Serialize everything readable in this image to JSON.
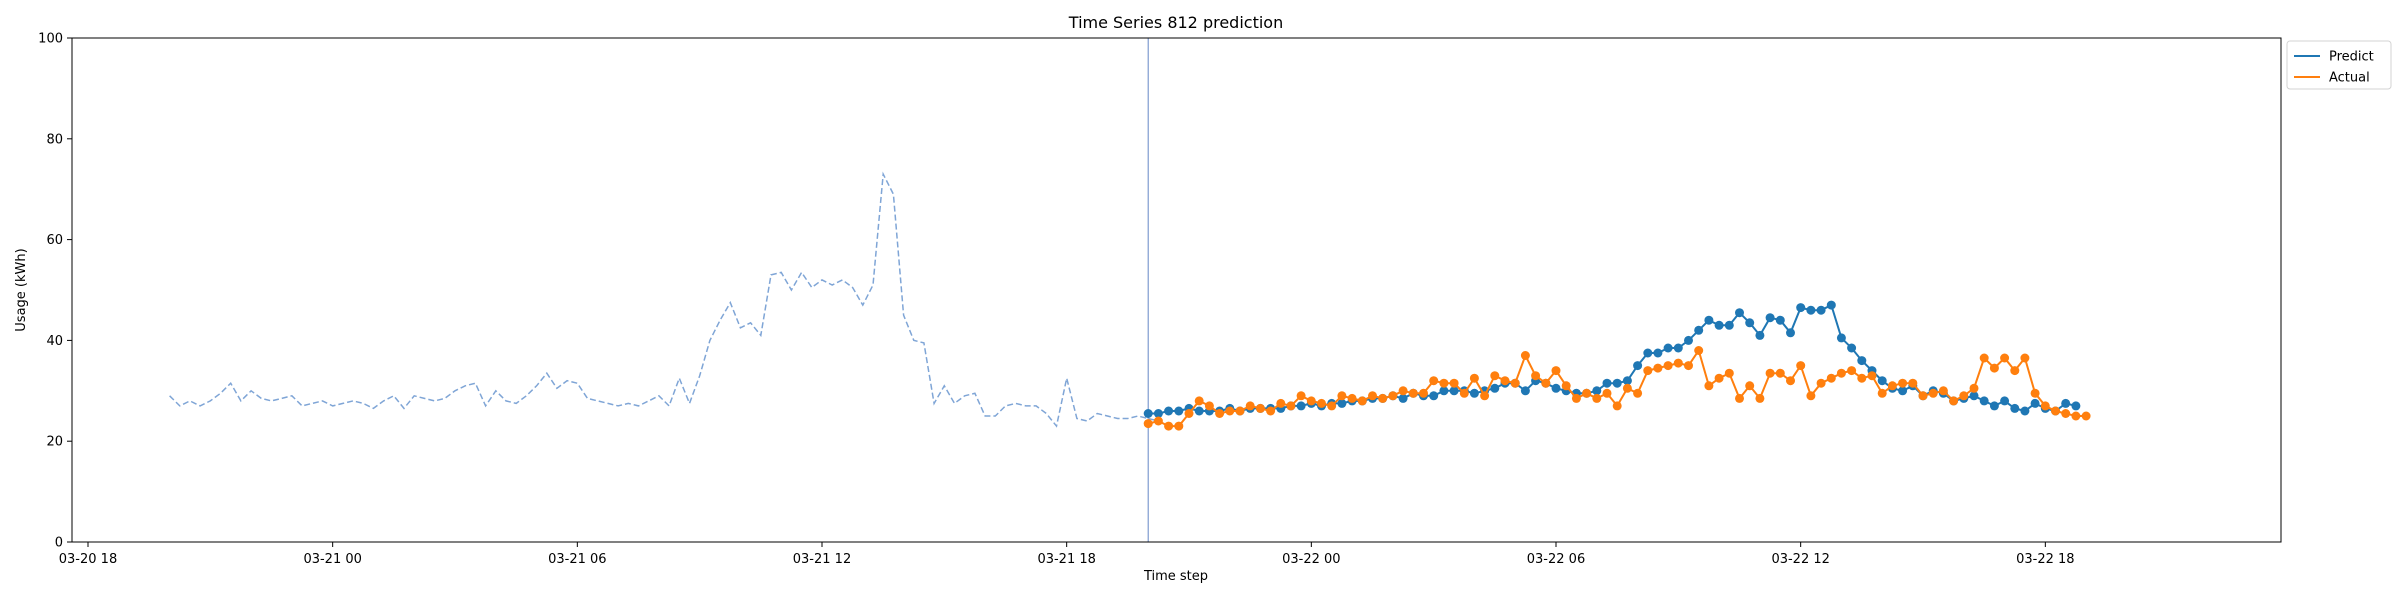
{
  "chart_data": {
    "type": "line",
    "title": "Time Series 812 prediction",
    "xlabel": "Time step",
    "ylabel": "Usage (kWh)",
    "xlim": [
      "2024-03-20 18:00",
      "2024-03-23 00:00"
    ],
    "ylim": [
      0,
      100
    ],
    "yticks": [
      0,
      20,
      40,
      60,
      80,
      100
    ],
    "xticks": [
      {
        "label": "03-20 18",
        "hours": 0
      },
      {
        "label": "03-21 00",
        "hours": 6
      },
      {
        "label": "03-21 06",
        "hours": 12
      },
      {
        "label": "03-21 12",
        "hours": 18
      },
      {
        "label": "03-21 18",
        "hours": 24
      },
      {
        "label": "03-22 00",
        "hours": 30
      },
      {
        "label": "03-22 06",
        "hours": 36
      },
      {
        "label": "03-22 12",
        "hours": 42
      },
      {
        "label": "03-22 18",
        "hours": 48
      }
    ],
    "forecast_start": "2024-03-21 20:00",
    "grid": false,
    "legend_position": "top-right (outside)",
    "history": {
      "start": "2024-03-20 20:00",
      "step_minutes": 15,
      "color": "#7fa5d6",
      "values": [
        29,
        27,
        28,
        27,
        28,
        29.5,
        31.5,
        28,
        30,
        28.5,
        28,
        28.5,
        29,
        27,
        27.5,
        28,
        27,
        27.5,
        28,
        27.5,
        26.5,
        28,
        29,
        26.5,
        29,
        28.5,
        28,
        28.5,
        30,
        31,
        31.5,
        27,
        30,
        28,
        27.5,
        29,
        31,
        33.5,
        30.5,
        32,
        31.5,
        28.5,
        28,
        27.5,
        27,
        27.5,
        27,
        28,
        29,
        27,
        32.5,
        27.5,
        33,
        40,
        44,
        47.5,
        42.5,
        43.5,
        41,
        53,
        53.5,
        50,
        53.5,
        50.5,
        52,
        51,
        52,
        50.5,
        47,
        51,
        73,
        69,
        45,
        40,
        39.5,
        27.5,
        31,
        27.5,
        29,
        29.5,
        25,
        25,
        27,
        27.5,
        27,
        27,
        25.5,
        23,
        32.5,
        24.5,
        24,
        25.5,
        25,
        24.5,
        24.5,
        25,
        24.5,
        24
      ]
    },
    "series": [
      {
        "name": "Predict",
        "color": "#1f77b4",
        "start": "2024-03-21 20:00",
        "step_minutes": 15,
        "values": [
          25.5,
          25.5,
          26,
          26,
          26.5,
          26,
          26,
          26,
          26.5,
          26,
          26.5,
          26.5,
          26.5,
          26.5,
          27,
          27,
          27.5,
          27,
          27.5,
          27.5,
          28,
          28,
          28.5,
          28.5,
          29,
          28.5,
          29.5,
          29,
          29,
          30,
          30,
          30,
          29.5,
          30,
          30.5,
          31.5,
          31.5,
          30,
          32,
          31.5,
          30.5,
          30,
          29.5,
          29.5,
          30,
          31.5,
          31.5,
          32,
          35,
          37.5,
          37.5,
          38.5,
          38.5,
          40,
          42,
          44,
          43,
          43,
          45.5,
          43.5,
          41,
          44.5,
          44,
          41.5,
          46.5,
          46,
          46,
          47,
          40.5,
          38.5,
          36,
          34,
          32,
          30.5,
          30,
          31,
          29,
          30,
          29.5,
          28,
          28.5,
          29,
          28,
          27,
          28,
          26.5,
          26,
          27.5,
          26.5,
          26,
          27.5,
          27
        ]
      },
      {
        "name": "Actual",
        "color": "#ff7f0e",
        "start": "2024-03-21 20:00",
        "step_minutes": 15,
        "values": [
          23.5,
          24,
          23,
          23,
          25.5,
          28,
          27,
          25.5,
          26,
          26,
          27,
          26.5,
          26,
          27.5,
          27,
          29,
          28,
          27.5,
          27,
          29,
          28.5,
          28,
          29,
          28.5,
          29,
          30,
          29.5,
          29.5,
          32,
          31.5,
          31.5,
          29.5,
          32.5,
          29,
          33,
          32,
          31.5,
          37,
          33,
          31.5,
          34,
          31,
          28.5,
          29.5,
          28.5,
          29.5,
          27,
          30.5,
          29.5,
          34,
          34.5,
          35,
          35.5,
          35,
          38,
          31,
          32.5,
          33.5,
          28.5,
          31,
          28.5,
          33.5,
          33.5,
          32,
          35,
          29,
          31.5,
          32.5,
          33.5,
          34,
          32.5,
          33,
          29.5,
          31,
          31.5,
          31.5,
          29,
          29.5,
          30,
          28,
          29,
          30.5,
          36.5,
          34.5,
          36.5,
          34,
          36.5,
          29.5,
          27,
          26,
          25.5,
          25,
          25
        ]
      }
    ]
  }
}
